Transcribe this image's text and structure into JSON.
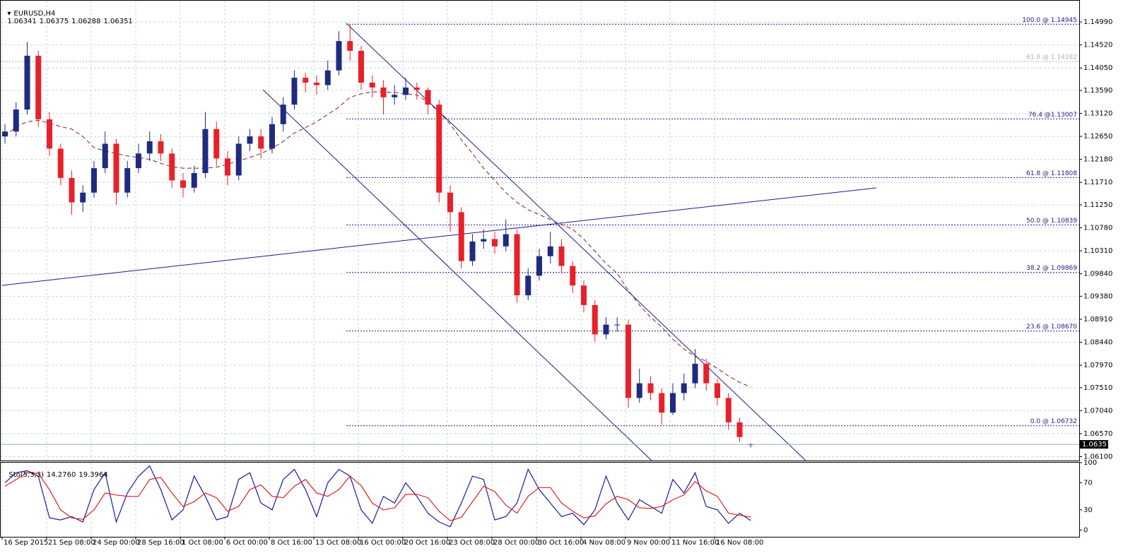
{
  "chart_data": [
    {
      "type": "candlestick",
      "title": "EURUSD,H4",
      "categories": [
        "16 Sep 2015",
        null,
        null,
        null,
        "21 Sep 08:00",
        null,
        null,
        null,
        "24 Sep 00:00",
        null,
        null,
        null,
        "28 Sep 16:00",
        null,
        null,
        null,
        "1 Oct 08:00",
        null,
        null,
        null,
        "6 Oct 00:00",
        null,
        null,
        null,
        "8 Oct 16:00",
        null,
        null,
        null,
        "13 Oct 08:00",
        null,
        null,
        null,
        "16 Oct 00:00",
        null,
        null,
        null,
        "20 Oct 16:00",
        null,
        null,
        null,
        "23 Oct 08:00",
        null,
        null,
        null,
        "28 Oct 00:00",
        null,
        null,
        null,
        "30 Oct 16:00",
        null,
        null,
        null,
        "4 Nov 08:00",
        null,
        null,
        null,
        "9 Nov 00:00",
        null,
        null,
        null,
        "11 Nov 16:00",
        null,
        null,
        null,
        "16 Nov 08:00",
        null,
        null,
        null
      ],
      "open": [
        1.1265,
        1.1275,
        1.132,
        1.143,
        1.13,
        1.124,
        1.118,
        1.113,
        1.115,
        1.12,
        1.125,
        1.115,
        1.12,
        1.123,
        1.1255,
        1.123,
        1.1175,
        1.116,
        1.119,
        1.128,
        1.122,
        1.1185,
        1.125,
        1.1265,
        1.124,
        1.129,
        1.133,
        1.1385,
        1.1375,
        1.137,
        1.14,
        1.146,
        1.144,
        1.1375,
        1.1365,
        1.1345,
        1.135,
        1.1365,
        1.136,
        1.133,
        1.115,
        1.111,
        1.101,
        1.105,
        1.1055,
        1.104,
        1.1065,
        1.094,
        1.098,
        1.102,
        1.104,
        1.1,
        1.096,
        1.092,
        1.086,
        1.088,
        1.088,
        1.073,
        1.076,
        1.074,
        1.07,
        1.074,
        1.076,
        1.08,
        1.076,
        1.073,
        1.068,
        1.06341
      ],
      "high": [
        1.129,
        1.1335,
        1.1458,
        1.144,
        1.1315,
        1.125,
        1.1195,
        1.1165,
        1.1215,
        1.1275,
        1.126,
        1.1215,
        1.125,
        1.1275,
        1.127,
        1.124,
        1.119,
        1.1205,
        1.1315,
        1.1295,
        1.1235,
        1.1265,
        1.128,
        1.128,
        1.1305,
        1.1345,
        1.14,
        1.1395,
        1.139,
        1.142,
        1.148,
        1.1494,
        1.145,
        1.139,
        1.138,
        1.137,
        1.1385,
        1.1375,
        1.1365,
        1.134,
        1.1165,
        1.112,
        1.1065,
        1.1075,
        1.107,
        1.1095,
        1.1075,
        1.0995,
        1.1035,
        1.107,
        1.1055,
        1.101,
        1.097,
        1.093,
        1.0895,
        1.0895,
        1.089,
        1.079,
        1.0775,
        1.075,
        1.076,
        1.078,
        1.083,
        1.081,
        1.077,
        1.074,
        1.069,
        1.06375
      ],
      "low": [
        1.125,
        1.1265,
        1.131,
        1.1285,
        1.1225,
        1.1165,
        1.1105,
        1.111,
        1.114,
        1.119,
        1.1125,
        1.114,
        1.119,
        1.1215,
        1.1215,
        1.116,
        1.114,
        1.115,
        1.118,
        1.1205,
        1.1165,
        1.1175,
        1.1235,
        1.122,
        1.123,
        1.1275,
        1.132,
        1.1355,
        1.135,
        1.136,
        1.139,
        1.142,
        1.136,
        1.1345,
        1.131,
        1.133,
        1.134,
        1.134,
        1.131,
        1.113,
        1.107,
        1.0995,
        1.1,
        1.1035,
        1.1025,
        1.103,
        1.0925,
        1.093,
        1.097,
        1.1005,
        1.0985,
        1.0945,
        1.0905,
        1.0845,
        1.085,
        1.0865,
        1.071,
        1.072,
        1.0725,
        1.0675,
        1.0695,
        1.0725,
        1.075,
        1.0745,
        1.0715,
        1.0665,
        1.064,
        1.06288
      ],
      "close": [
        1.1275,
        1.132,
        1.143,
        1.13,
        1.124,
        1.118,
        1.113,
        1.115,
        1.12,
        1.125,
        1.115,
        1.12,
        1.123,
        1.1255,
        1.123,
        1.1175,
        1.116,
        1.119,
        1.128,
        1.122,
        1.1185,
        1.125,
        1.1265,
        1.124,
        1.129,
        1.133,
        1.1385,
        1.1375,
        1.137,
        1.14,
        1.146,
        1.144,
        1.1375,
        1.1365,
        1.1345,
        1.135,
        1.1365,
        1.136,
        1.133,
        1.115,
        1.111,
        1.101,
        1.105,
        1.1055,
        1.104,
        1.1065,
        1.094,
        1.098,
        1.102,
        1.104,
        1.1,
        1.096,
        1.092,
        1.086,
        1.088,
        1.088,
        1.073,
        1.076,
        1.074,
        1.07,
        1.074,
        1.076,
        1.08,
        1.076,
        1.073,
        1.068,
        1.065,
        1.06351
      ],
      "up_color": "#1f2a80",
      "down_color": "#e8202a",
      "series": [
        {
          "color": "#8b1a1a",
          "values": [
            1.1265,
            1.1285,
            1.1295,
            1.1298,
            1.1292,
            1.1285,
            1.128,
            1.1265,
            1.1242,
            1.1235,
            1.123,
            1.1225,
            1.1222,
            1.1218,
            1.121,
            1.1203,
            1.12,
            1.12,
            1.12,
            1.1202,
            1.1208,
            1.1215,
            1.1222,
            1.123,
            1.124,
            1.1255,
            1.1272,
            1.1283,
            1.1295,
            1.131,
            1.1325,
            1.1345,
            1.1352,
            1.1356,
            1.1356,
            1.1355,
            1.1352,
            1.135,
            1.1335,
            1.1315,
            1.129,
            1.1258,
            1.123,
            1.12,
            1.1175,
            1.115,
            1.113,
            1.1115,
            1.1105,
            1.1095,
            1.1085,
            1.1075,
            1.1055,
            1.103,
            1.1005,
            1.0985,
            1.095,
            1.092,
            1.0895,
            1.0875,
            1.085,
            1.083,
            1.0815,
            1.0805,
            1.079,
            1.0775,
            1.0762,
            1.0752
          ]
        }
      ],
      "fib_color": "#1a1a8c",
      "fib_levels": [
        {
          "value": 1.14945,
          "label": "100.0 @ 1.14945"
        },
        {
          "value": 1.14182,
          "label": "61.8 @ 1.14182",
          "color": "#b0b0b0"
        },
        {
          "value": 1.13007,
          "label": "76.4 @1.13007"
        },
        {
          "value": 1.11808,
          "label": "61.8 @ 1.11808"
        },
        {
          "value": 1.10839,
          "label": "50.0 @ 1.10839"
        },
        {
          "value": 1.09869,
          "label": "38.2 @ 1.09869"
        },
        {
          "value": 1.0867,
          "label": "23.6 @ 1.08670"
        },
        {
          "value": 1.06732,
          "label": "0.0 @ 1.06732"
        }
      ],
      "ylim": [
        1.0602,
        1.1544
      ],
      "yticks": [
        {
          "value": 1.1499,
          "label": "1.14990"
        },
        {
          "value": 1.1452,
          "label": "1.14520"
        },
        {
          "value": 1.1405,
          "label": "1.14050"
        },
        {
          "value": 1.1359,
          "label": "1.13590"
        },
        {
          "value": 1.1312,
          "label": "1.13120"
        },
        {
          "value": 1.1265,
          "label": "1.12650"
        },
        {
          "value": 1.1218,
          "label": "1.12180"
        },
        {
          "value": 1.1171,
          "label": "1.11710"
        },
        {
          "value": 1.1125,
          "label": "1.11250"
        },
        {
          "value": 1.1078,
          "label": "1.10780"
        },
        {
          "value": 1.1031,
          "label": "1.10310"
        },
        {
          "value": 1.0984,
          "label": "1.09840"
        },
        {
          "value": 1.0938,
          "label": "1.09380"
        },
        {
          "value": 1.0891,
          "label": "1.08910"
        },
        {
          "value": 1.0844,
          "label": "1.08440"
        },
        {
          "value": 1.0797,
          "label": "1.07970"
        },
        {
          "value": 1.0751,
          "label": "1.07510"
        },
        {
          "value": 1.0704,
          "label": "1.07040"
        },
        {
          "value": 1.0657,
          "label": "1.06570"
        },
        {
          "value": 1.061,
          "label": "1.06100"
        }
      ],
      "grid": true
    },
    {
      "type": "line",
      "title": "Sto(5,3,3)",
      "header_values": [
        {
          "value": 14.276,
          "label": "14.2760"
        },
        {
          "value": 19.3964,
          "label": "19.3964"
        }
      ],
      "series": [
        {
          "color": "#1a1aa0",
          "values": [
            70,
            85,
            88,
            80,
            18,
            15,
            20,
            12,
            60,
            85,
            12,
            55,
            80,
            95,
            60,
            15,
            30,
            80,
            50,
            15,
            20,
            75,
            85,
            40,
            30,
            75,
            90,
            60,
            20,
            70,
            90,
            80,
            30,
            10,
            50,
            40,
            70,
            50,
            25,
            12,
            5,
            40,
            80,
            75,
            15,
            20,
            40,
            90,
            60,
            40,
            20,
            25,
            8,
            30,
            80,
            40,
            15,
            45,
            35,
            25,
            75,
            55,
            85,
            35,
            30,
            10,
            25,
            14.276
          ]
        },
        {
          "color": "#e02020",
          "values": [
            65,
            75,
            85,
            84,
            60,
            30,
            18,
            16,
            30,
            55,
            52,
            50,
            50,
            75,
            78,
            55,
            35,
            42,
            55,
            48,
            28,
            35,
            60,
            67,
            50,
            48,
            65,
            75,
            55,
            50,
            60,
            80,
            66,
            40,
            30,
            33,
            53,
            53,
            48,
            28,
            14,
            19,
            42,
            65,
            57,
            37,
            25,
            50,
            63,
            63,
            40,
            28,
            18,
            21,
            39,
            50,
            45,
            33,
            32,
            35,
            45,
            52,
            72,
            58,
            50,
            25,
            22,
            19.3964
          ]
        }
      ],
      "ylim": [
        -10,
        101
      ],
      "yticks": [
        100,
        70,
        30,
        0
      ]
    }
  ]
}
